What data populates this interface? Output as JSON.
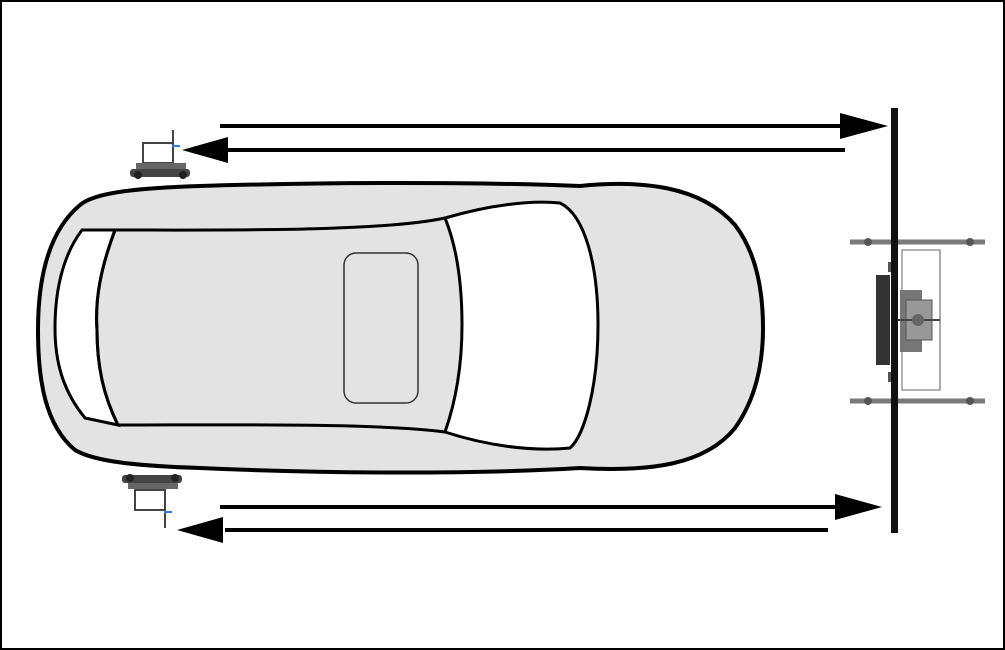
{
  "diagram": {
    "colors": {
      "frame": "#000000",
      "car_body": "#e3e3e3",
      "glass": "#ffffff",
      "outline": "#000000",
      "arrow": "#000000",
      "target_stand": "#8a8a8a",
      "sensor": "#555555"
    },
    "icons": {
      "vehicle": "car-top-view-icon",
      "left_sensor": "wheel-sensor-icon",
      "right_sensor": "wheel-sensor-icon",
      "target_board": "calibration-target-icon",
      "signal_arrows": "bidirectional-arrow-icon"
    }
  }
}
